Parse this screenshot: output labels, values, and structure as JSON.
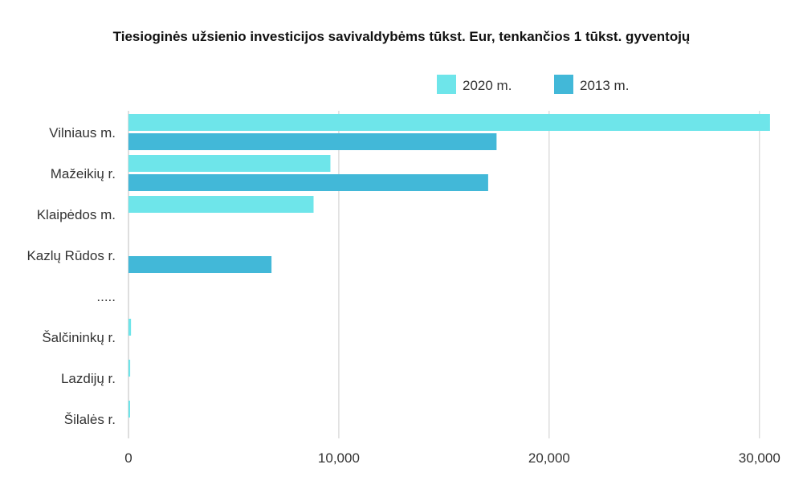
{
  "chart_data": {
    "type": "bar",
    "orientation": "horizontal",
    "title": "Tiesioginės užsienio investicijos savivaldybėms tūkst. Eur, tenkančios 1 tūkst. gyventojų",
    "xlabel": "",
    "ylabel": "",
    "categories": [
      "Vilniaus m.",
      "Mažeikių r.",
      "Klaipėdos m.",
      "Kazlų Rūdos r.",
      ".....",
      "Šalčininkų r.",
      "Lazdijų r.",
      "Šilalės r."
    ],
    "series": [
      {
        "name": "2020 m.",
        "color": "#6ee5ea",
        "values": [
          30500,
          9600,
          8800,
          null,
          null,
          120,
          80,
          60
        ]
      },
      {
        "name": "2013 m.",
        "color": "#42b8d8",
        "values": [
          17500,
          17100,
          null,
          6800,
          null,
          null,
          null,
          null
        ]
      }
    ],
    "xlim": [
      0,
      31000
    ],
    "xticks": [
      0,
      10000,
      20000,
      30000
    ],
    "xtick_labels": [
      "0",
      "10,000",
      "20,000",
      "30,000"
    ],
    "grid": "vertical",
    "legend": "top-right"
  }
}
